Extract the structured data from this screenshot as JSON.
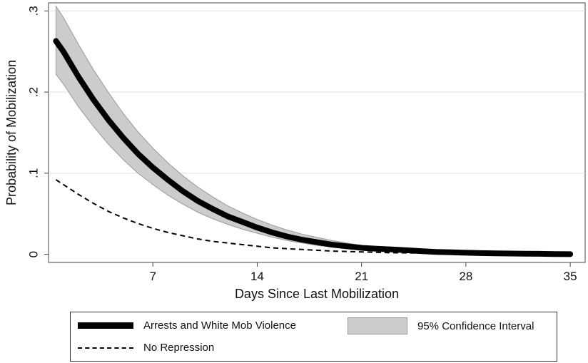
{
  "chart_data": {
    "type": "line",
    "xlabel": "Days Since Last Mobilization",
    "ylabel": "Probability of Mobilization",
    "xlim": [
      0,
      36
    ],
    "ylim": [
      -0.01,
      0.31
    ],
    "x_ticks": [
      7,
      14,
      21,
      28,
      35
    ],
    "x_tick_labels": [
      "7",
      "14",
      "21",
      "28",
      "35"
    ],
    "y_ticks": [
      0,
      0.1,
      0.2,
      0.3
    ],
    "y_tick_labels": [
      "0",
      ".1",
      ".2",
      ".3"
    ],
    "grid": "horizontal",
    "legend_position": "bottom",
    "x": [
      0.5,
      1,
      2,
      3,
      4,
      5,
      6,
      7,
      8,
      9,
      10,
      11,
      12,
      13,
      14,
      15,
      16,
      17,
      18,
      19,
      20,
      21,
      22,
      23,
      24,
      25,
      26,
      27,
      28,
      29,
      30,
      31,
      32,
      33,
      34,
      35
    ],
    "series": [
      {
        "name": "Arrests and White Mob Violence",
        "style": "thick-solid",
        "color": "#000000",
        "values": [
          0.263,
          0.25,
          0.219,
          0.191,
          0.166,
          0.144,
          0.124,
          0.107,
          0.092,
          0.078,
          0.066,
          0.056,
          0.047,
          0.04,
          0.033,
          0.027,
          0.022,
          0.018,
          0.015,
          0.012,
          0.01,
          0.008,
          0.007,
          0.006,
          0.005,
          0.004,
          0.003,
          0.0025,
          0.002,
          0.0015,
          0.0012,
          0.001,
          0.0008,
          0.0006,
          0.0004,
          0.0002
        ]
      },
      {
        "name": "No Repression",
        "style": "dashed",
        "color": "#000000",
        "values": [
          0.092,
          0.086,
          0.074,
          0.063,
          0.053,
          0.045,
          0.038,
          0.032,
          0.027,
          0.023,
          0.019,
          0.016,
          0.014,
          0.012,
          0.01,
          0.008,
          0.007,
          0.006,
          0.005,
          0.004,
          0.0035,
          0.003,
          0.0025,
          0.002,
          0.0018,
          0.0015,
          0.0012,
          0.001,
          0.0008,
          0.0007,
          0.0006,
          0.0005,
          0.0004,
          0.0003,
          0.0002,
          0.0001
        ]
      }
    ],
    "confidence_band": {
      "name": "95% Confidence Interval",
      "color": "#cccccc",
      "lower": [
        0.222,
        0.21,
        0.182,
        0.158,
        0.136,
        0.117,
        0.1,
        0.086,
        0.073,
        0.062,
        0.052,
        0.044,
        0.037,
        0.031,
        0.026,
        0.021,
        0.017,
        0.014,
        0.011,
        0.009,
        0.007,
        0.006,
        0.005,
        0.004,
        0.003,
        0.0025,
        0.002,
        0.0015,
        0.0012,
        0.001,
        0.0008,
        0.0006,
        0.0004,
        0.0003,
        0.0002,
        0.0001
      ],
      "upper": [
        0.306,
        0.292,
        0.259,
        0.228,
        0.2,
        0.174,
        0.151,
        0.131,
        0.113,
        0.097,
        0.083,
        0.071,
        0.06,
        0.051,
        0.043,
        0.036,
        0.03,
        0.025,
        0.021,
        0.017,
        0.014,
        0.011,
        0.009,
        0.008,
        0.007,
        0.006,
        0.005,
        0.004,
        0.003,
        0.0025,
        0.002,
        0.0016,
        0.0012,
        0.0009,
        0.0006,
        0.0003
      ]
    }
  },
  "legend": {
    "items": [
      {
        "label": "Arrests and White Mob Violence"
      },
      {
        "label": "95% Confidence Interval"
      },
      {
        "label": "No Repression"
      }
    ]
  }
}
